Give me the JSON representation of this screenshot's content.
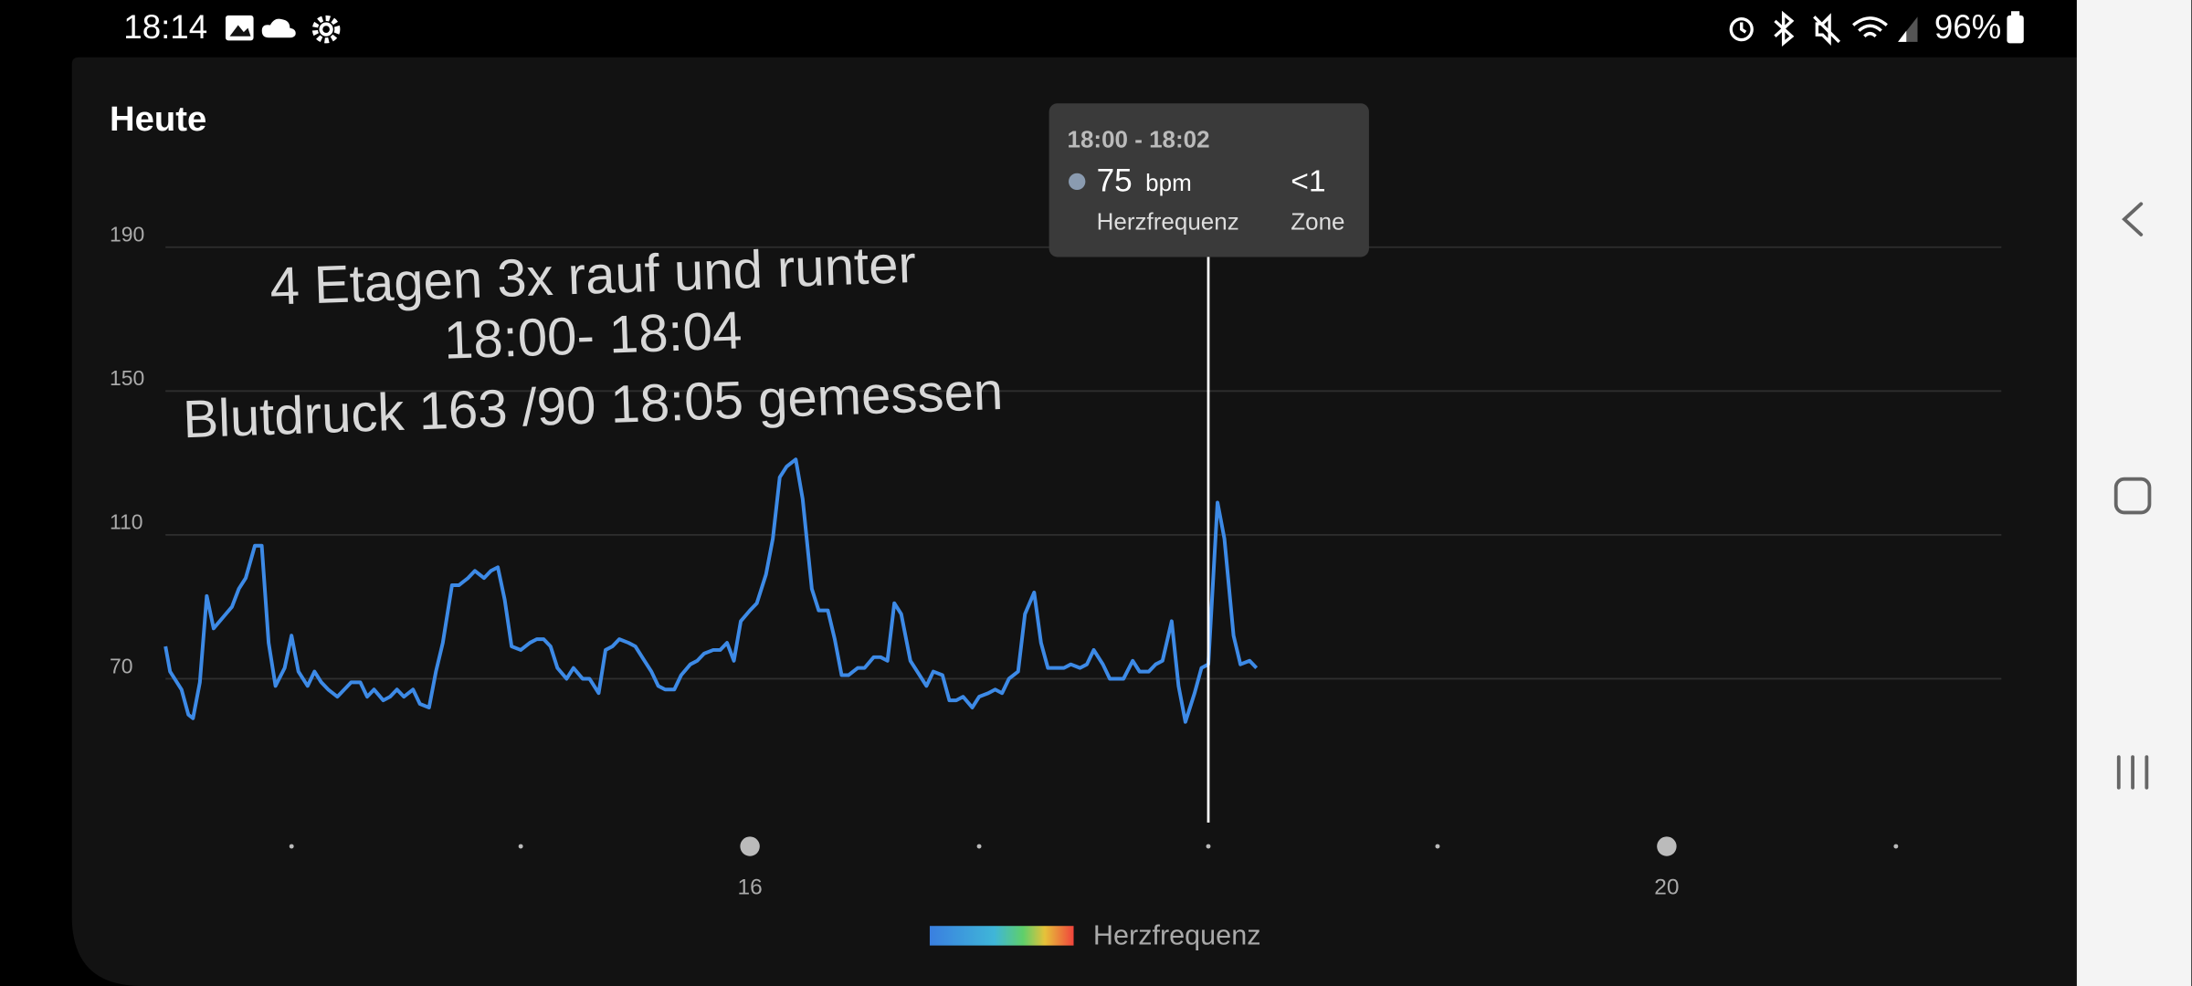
{
  "status_bar": {
    "time": "18:14",
    "battery": "96%"
  },
  "chart_data": {
    "type": "line",
    "title": "Heute",
    "annotations": [
      "4 Etagen 3x rauf und runter",
      "18:00- 18:04",
      "Blutdruck 163 /90 18:05 gemessen"
    ],
    "x": [
      13.45,
      13.47,
      13.52,
      13.55,
      13.57,
      13.6,
      13.63,
      13.66,
      13.7,
      13.74,
      13.77,
      13.8,
      13.84,
      13.87,
      13.9,
      13.93,
      13.97,
      14.0,
      14.03,
      14.07,
      14.1,
      14.13,
      14.16,
      14.2,
      14.23,
      14.26,
      14.3,
      14.33,
      14.36,
      14.4,
      14.43,
      14.46,
      14.49,
      14.53,
      14.56,
      14.6,
      14.63,
      14.66,
      14.7,
      14.73,
      14.77,
      14.8,
      14.84,
      14.87,
      14.9,
      14.93,
      14.96,
      15.0,
      15.04,
      15.07,
      15.1,
      15.13,
      15.16,
      15.2,
      15.23,
      15.27,
      15.3,
      15.34,
      15.37,
      15.4,
      15.43,
      15.47,
      15.5,
      15.54,
      15.57,
      15.6,
      15.63,
      15.67,
      15.7,
      15.74,
      15.77,
      15.8,
      15.84,
      15.87,
      15.9,
      15.93,
      15.96,
      16.0,
      16.03,
      16.07,
      16.1,
      16.13,
      16.16,
      16.2,
      16.23,
      16.27,
      16.3,
      16.34,
      16.37,
      16.4,
      16.43,
      16.47,
      16.5,
      16.54,
      16.57,
      16.6,
      16.63,
      16.66,
      16.7,
      16.73,
      16.77,
      16.8,
      16.84,
      16.87,
      16.9,
      16.93,
      16.97,
      17.0,
      17.04,
      17.07,
      17.1,
      17.13,
      17.17,
      17.2,
      17.24,
      17.27,
      17.3,
      17.34,
      17.37,
      17.4,
      17.44,
      17.47,
      17.5,
      17.54,
      17.57,
      17.6,
      17.63,
      17.67,
      17.7,
      17.74,
      17.77,
      17.8,
      17.84,
      17.87,
      17.9,
      17.94,
      17.97,
      18.0,
      18.04,
      18.07,
      18.11,
      18.14,
      18.18,
      18.21
    ],
    "series": [
      {
        "name": "Herzfrequenz",
        "color": "#3d8ae6",
        "values": [
          79,
          72,
          67,
          60,
          59,
          69,
          93,
          84,
          87,
          90,
          95,
          98,
          107,
          107,
          80,
          68,
          73,
          82,
          72,
          68,
          72,
          69,
          67,
          65,
          67,
          69,
          69,
          65,
          67,
          64,
          65,
          67,
          65,
          67,
          63,
          62,
          72,
          80,
          96,
          96,
          98,
          100,
          98,
          100,
          101,
          92,
          79,
          78,
          80,
          81,
          81,
          79,
          73,
          70,
          73,
          70,
          70,
          66,
          78,
          79,
          81,
          80,
          79,
          75,
          72,
          68,
          67,
          67,
          71,
          74,
          75,
          77,
          78,
          78,
          80,
          75,
          86,
          89,
          91,
          99,
          109,
          126,
          129,
          131,
          120,
          95,
          89,
          89,
          81,
          71,
          71,
          73,
          73,
          76,
          76,
          75,
          91,
          88,
          75,
          72,
          68,
          72,
          71,
          64,
          64,
          65,
          62,
          65,
          66,
          67,
          66,
          70,
          72,
          88,
          94,
          80,
          73,
          73,
          73,
          74,
          73,
          74,
          78,
          74,
          70,
          70,
          70,
          75,
          72,
          72,
          74,
          75,
          86,
          68,
          58,
          66,
          73,
          74,
          119,
          109,
          82,
          74,
          75,
          73
        ]
      }
    ],
    "xlim": [
      13.45,
      21.46
    ],
    "xticks": [
      16,
      20
    ],
    "minor_xticks": [
      14,
      15,
      17,
      18,
      19,
      21
    ],
    "ylim": [
      30,
      190
    ],
    "yticks": [
      70,
      110,
      150,
      190
    ],
    "grid": true,
    "legend": "bottom",
    "cursor": {
      "x": 18,
      "range": "18:00 - 18:02",
      "value": 75,
      "unit": "bpm",
      "zone": "<1",
      "zone_name": "Zone"
    }
  }
}
